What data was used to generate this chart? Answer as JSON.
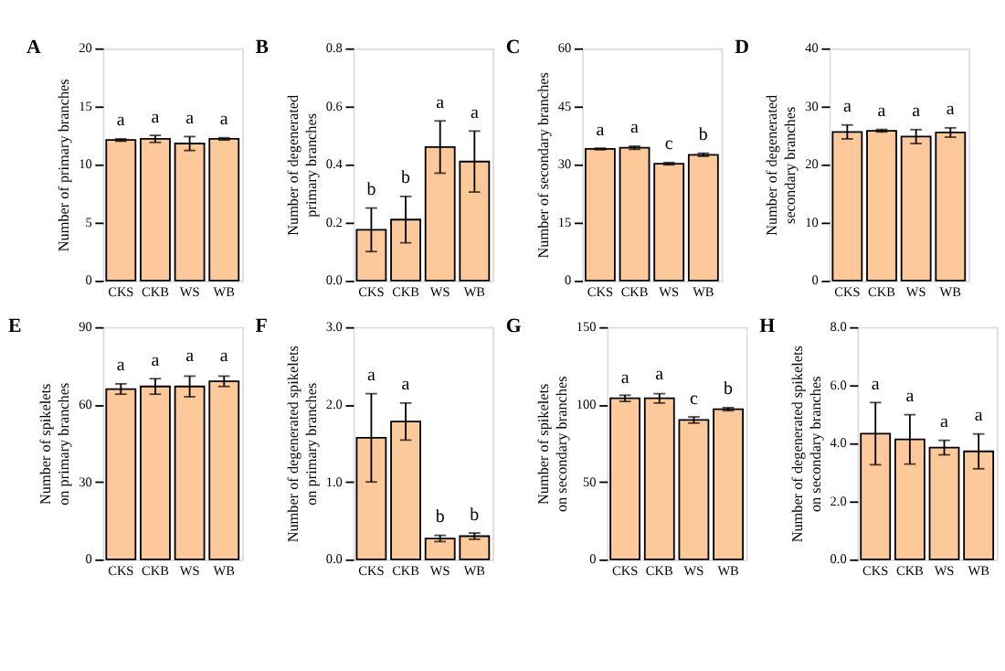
{
  "chart_data": [
    {
      "type": "bar",
      "title": "A",
      "ylabel": "Number of primary branches",
      "categories": [
        "CKS",
        "CKB",
        "WS",
        "WB"
      ],
      "values": [
        12.1,
        12.2,
        11.8,
        12.2
      ],
      "errors": [
        0.1,
        0.3,
        0.6,
        0.1
      ],
      "color": "#fdc99a",
      "ylim": [
        0,
        20
      ],
      "yticks": [
        0,
        5,
        10,
        15,
        20
      ],
      "annotations": [
        {
          "text": "a",
          "x": "CKS",
          "y": 12.2
        },
        {
          "text": "a",
          "x": "CKB",
          "y": 12.5
        },
        {
          "text": "a",
          "x": "WS",
          "y": 12.4
        },
        {
          "text": "a",
          "x": "WB",
          "y": 12.3
        }
      ]
    },
    {
      "type": "bar",
      "title": "B",
      "ylabel": "Number of degenerated\nprimary branches",
      "categories": [
        "CKS",
        "CKB",
        "WS",
        "WB"
      ],
      "values": [
        0.175,
        0.21,
        0.46,
        0.41
      ],
      "errors": [
        0.075,
        0.08,
        0.09,
        0.105
      ],
      "color": "#fdc99a",
      "ylim": [
        0,
        0.8
      ],
      "yticks": [
        {
          "value": 0,
          "label": "0.0"
        },
        0.2,
        0.4,
        0.6,
        0.8
      ],
      "annotations": [
        {
          "text": "b",
          "x": "CKS",
          "y": 0.25
        },
        {
          "text": "b",
          "x": "CKB",
          "y": 0.29
        },
        {
          "text": "a",
          "x": "WS",
          "y": 0.55
        },
        {
          "text": "a",
          "x": "WB",
          "y": 0.515
        }
      ]
    },
    {
      "type": "bar",
      "title": "C",
      "ylabel": "Number of secondary branches",
      "categories": [
        "CKS",
        "CKB",
        "WS",
        "WB"
      ],
      "values": [
        34.0,
        34.3,
        30.2,
        32.5
      ],
      "errors": [
        0.2,
        0.4,
        0.3,
        0.4
      ],
      "color": "#fdc99a",
      "ylim": [
        0,
        60
      ],
      "yticks": [
        0,
        15,
        30,
        45,
        60
      ],
      "annotations": [
        {
          "text": "a",
          "x": "CKS",
          "y": 34.2
        },
        {
          "text": "a",
          "x": "CKB",
          "y": 34.7
        },
        {
          "text": "c",
          "x": "WS",
          "y": 30.5
        },
        {
          "text": "b",
          "x": "WB",
          "y": 32.9
        }
      ]
    },
    {
      "type": "bar",
      "title": "D",
      "ylabel": "Number of degenerated\nsecondary branches",
      "categories": [
        "CKS",
        "CKB",
        "WS",
        "WB"
      ],
      "values": [
        25.6,
        25.8,
        24.8,
        25.5
      ],
      "errors": [
        1.2,
        0.2,
        1.2,
        0.8
      ],
      "color": "#fdc99a",
      "ylim": [
        0,
        40
      ],
      "yticks": [
        0,
        10,
        20,
        30,
        40
      ],
      "annotations": [
        {
          "text": "a",
          "x": "CKS",
          "y": 26.8
        },
        {
          "text": "a",
          "x": "CKB",
          "y": 26.0
        },
        {
          "text": "a",
          "x": "WS",
          "y": 26.0
        },
        {
          "text": "a",
          "x": "WB",
          "y": 26.3
        }
      ]
    },
    {
      "type": "bar",
      "title": "E",
      "ylabel": "Number of spikelets\non primary branches",
      "categories": [
        "CKS",
        "CKB",
        "WS",
        "WB"
      ],
      "values": [
        66,
        67,
        67,
        69
      ],
      "errors": [
        2,
        3,
        4,
        2
      ],
      "color": "#fdc99a",
      "ylim": [
        0,
        90
      ],
      "yticks": [
        0,
        30,
        60,
        90
      ],
      "annotations": [
        {
          "text": "a",
          "x": "CKS",
          "y": 68.3
        },
        {
          "text": "a",
          "x": "CKB",
          "y": 70.0
        },
        {
          "text": "a",
          "x": "WS",
          "y": 71.5
        },
        {
          "text": "a",
          "x": "WB",
          "y": 71.5
        }
      ]
    },
    {
      "type": "bar",
      "title": "F",
      "ylabel": "Number of degenerated spikelets\non primary branches",
      "categories": [
        "CKS",
        "CKB",
        "WS",
        "WB"
      ],
      "values": [
        1.57,
        1.78,
        0.27,
        0.3
      ],
      "errors": [
        0.57,
        0.24,
        0.04,
        0.04
      ],
      "color": "#fdc99a",
      "ylim": [
        0,
        3
      ],
      "yticks": [
        {
          "value": 0,
          "label": "0.0"
        },
        {
          "value": 1,
          "label": "1.0"
        },
        {
          "value": 2,
          "label": "2.0"
        },
        {
          "value": 3,
          "label": "3.0"
        }
      ],
      "annotations": [
        {
          "text": "a",
          "x": "CKS",
          "y": 2.14
        },
        {
          "text": "a",
          "x": "CKB",
          "y": 2.02
        },
        {
          "text": "b",
          "x": "WS",
          "y": 0.31
        },
        {
          "text": "b",
          "x": "WB",
          "y": 0.34
        }
      ]
    },
    {
      "type": "bar",
      "title": "G",
      "ylabel": "Number of spikelets\non secondary branches",
      "categories": [
        "CKS",
        "CKB",
        "WS",
        "WB"
      ],
      "values": [
        104,
        104,
        90,
        97
      ],
      "errors": [
        2,
        3,
        2,
        1
      ],
      "color": "#fdc99a",
      "ylim": [
        0,
        150
      ],
      "yticks": [
        0,
        50,
        100,
        150
      ],
      "annotations": [
        {
          "text": "a",
          "x": "CKS",
          "y": 105.5
        },
        {
          "text": "a",
          "x": "CKB",
          "y": 107.5
        },
        {
          "text": "c",
          "x": "WS",
          "y": 92.0
        },
        {
          "text": "b",
          "x": "WB",
          "y": 98.0
        }
      ]
    },
    {
      "type": "bar",
      "title": "H",
      "ylabel": "Number of degenerated spikelets\non secondary branches",
      "categories": [
        "CKS",
        "CKB",
        "WS",
        "WB"
      ],
      "values": [
        4.33,
        4.13,
        3.85,
        3.72
      ],
      "errors": [
        1.07,
        0.85,
        0.25,
        0.6
      ],
      "color": "#fdc99a",
      "ylim": [
        0,
        8
      ],
      "yticks": [
        {
          "value": 0,
          "label": "0.0"
        },
        {
          "value": 2,
          "label": "2.0"
        },
        {
          "value": 4,
          "label": "4.0"
        },
        {
          "value": 6,
          "label": "6.0"
        },
        {
          "value": 8,
          "label": "8.0"
        }
      ],
      "annotations": [
        {
          "text": "a",
          "x": "CKS",
          "y": 5.4
        },
        {
          "text": "a",
          "x": "CKB",
          "y": 4.98
        },
        {
          "text": "a",
          "x": "WS",
          "y": 4.1
        },
        {
          "text": "a",
          "x": "WB",
          "y": 4.32
        }
      ]
    }
  ]
}
